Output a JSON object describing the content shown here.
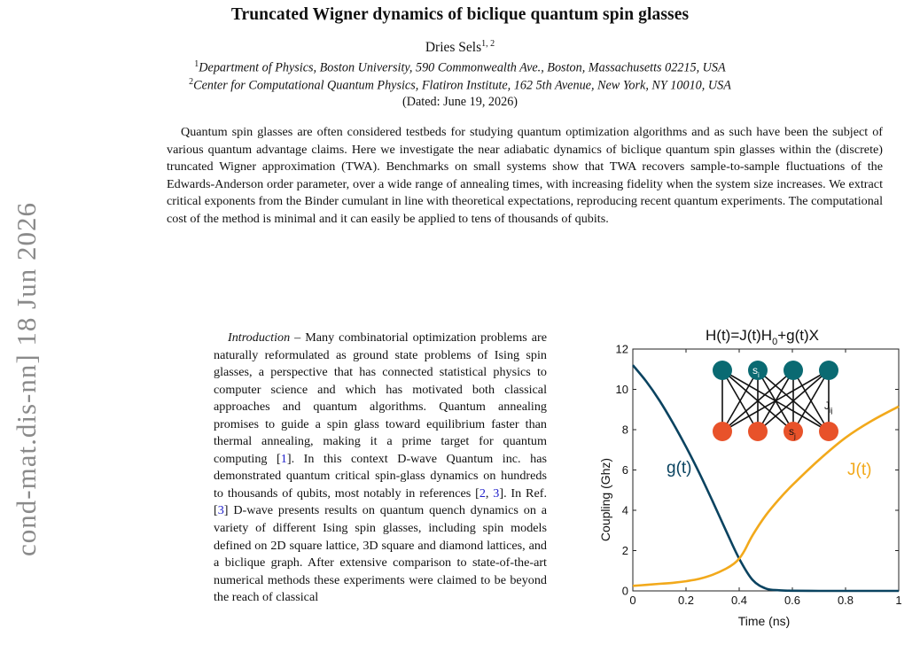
{
  "paper": {
    "title": "Truncated Wigner dynamics of biclique quantum spin glasses",
    "author": "Dries Sels",
    "author_sup": "1, 2",
    "affiliations": [
      {
        "sup": "1",
        "text": "Department of Physics, Boston University, 590 Commonwealth Ave., Boston, Massachusetts 02215, USA"
      },
      {
        "sup": "2",
        "text": "Center for Computational Quantum Physics, Flatiron Institute, 162 5th Avenue, New York, NY 10010, USA"
      }
    ],
    "dated": "(Dated: June 19, 2026)",
    "abstract": "Quantum spin glasses are often considered testbeds for studying quantum optimization algorithms and as such have been the subject of various quantum advantage claims. Here we investigate the near adiabatic dynamics of biclique quantum spin glasses within the (discrete) truncated Wigner approximation (TWA). Benchmarks on small systems show that TWA recovers sample-to-sample fluctuations of the Edwards-Anderson order parameter, over a wide range of annealing times, with increasing fidelity when the system size increases. We extract critical exponents from the Binder cumulant in line with theoretical expectations, reproducing recent quantum experiments. The computational cost of the method is minimal and it can easily be applied to tens of thousands of qubits.",
    "arxiv_id": "cond-mat.dis-nn]  18 Jun 2026",
    "intro_heading": "Introduction",
    "intro_parts": [
      " – Many combinatorial optimization problems are naturally reformulated as ground state problems of Ising spin glasses, a perspective that has connected statistical physics to computer science and which has motivated both classical approaches and quantum algorithms. Quantum annealing promises to guide a spin glass toward equilibrium faster than thermal annealing, making it a prime target for quantum computing [",
      "]. In this context D-wave Quantum inc. has demonstrated quantum critical spin-glass dynamics on hundreds to thousands of qubits, most notably in references [",
      ", ",
      "]. In Ref. [",
      "] D-wave presents results on quantum quench dynamics on a variety of different Ising spin glasses, including spin models defined on 2D square lattice, 3D square and diamond lattices, and a biclique graph. After extensive comparison to state-of-the-art numerical methods these experiments were claimed to be beyond the reach of classical"
    ],
    "citations": [
      "1",
      "2",
      "3",
      "3"
    ]
  },
  "figure": {
    "title_main": "H(t)=J(t)H",
    "title_sub": "0",
    "title_end": "+g(t)X",
    "ylabel": "Coupling (Ghz)",
    "xlabel": "Time (ns)",
    "series_labels": {
      "g": "g(t)",
      "J": "J(t)"
    },
    "inset_labels": {
      "si": "s",
      "si_sub": "i",
      "jij": "J",
      "jij_sub": "ij",
      "sj": "s",
      "sj_sub": "j"
    },
    "colors": {
      "g": "#0a4360",
      "J": "#f2a91b",
      "top_node": "#0a6a72",
      "bottom_node": "#e8522a",
      "edge": "#111111"
    }
  },
  "chart_data": {
    "type": "line",
    "title": "H(t)=J(t)H0+g(t)X",
    "xlabel": "Time (ns)",
    "ylabel": "Coupling (Ghz)",
    "xlim": [
      0,
      1
    ],
    "ylim": [
      0,
      12
    ],
    "xticks": [
      "0",
      "0.2",
      "0.4",
      "0.6",
      "0.8",
      "1"
    ],
    "yticks": [
      "0",
      "2",
      "4",
      "6",
      "8",
      "10",
      "12"
    ],
    "grid": false,
    "series": [
      {
        "name": "g(t)",
        "x": [
          0,
          0.05,
          0.1,
          0.15,
          0.2,
          0.25,
          0.3,
          0.35,
          0.4,
          0.45,
          0.5,
          0.55,
          0.6,
          0.7,
          0.8,
          0.9,
          1.0
        ],
        "y": [
          11.2,
          10.4,
          9.45,
          8.35,
          7.15,
          5.85,
          4.45,
          3.0,
          1.6,
          0.55,
          0.12,
          0.03,
          0.01,
          0.0,
          0.0,
          0.0,
          0.0
        ]
      },
      {
        "name": "J(t)",
        "x": [
          0,
          0.05,
          0.1,
          0.15,
          0.2,
          0.25,
          0.3,
          0.35,
          0.38,
          0.4,
          0.42,
          0.45,
          0.5,
          0.55,
          0.6,
          0.7,
          0.8,
          0.9,
          1.0
        ],
        "y": [
          0.25,
          0.3,
          0.35,
          0.4,
          0.48,
          0.6,
          0.8,
          1.1,
          1.35,
          1.6,
          2.0,
          2.75,
          3.75,
          4.55,
          5.25,
          6.5,
          7.6,
          8.45,
          9.15
        ]
      }
    ]
  }
}
